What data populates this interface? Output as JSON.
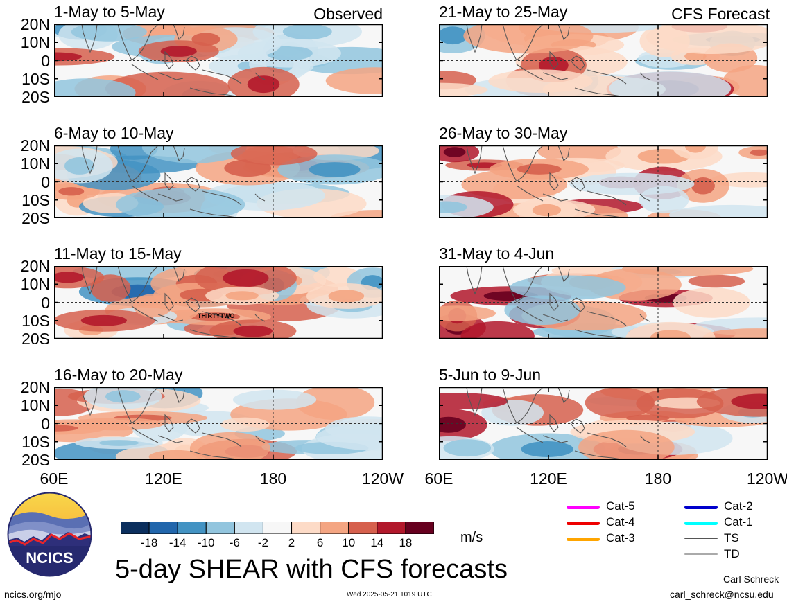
{
  "panels_left": [
    {
      "title": "1-May to 5-May",
      "tag": "Observed"
    },
    {
      "title": "6-May to 10-May",
      "tag": ""
    },
    {
      "title": "11-May to 15-May",
      "tag": "",
      "annotation": "THIRTYTWO"
    },
    {
      "title": "16-May to 20-May",
      "tag": ""
    }
  ],
  "panels_right": [
    {
      "title": "21-May to 25-May",
      "tag": "CFS Forecast"
    },
    {
      "title": "26-May to 30-May",
      "tag": ""
    },
    {
      "title": "31-May to 4-Jun",
      "tag": ""
    },
    {
      "title": "5-Jun to 9-Jun",
      "tag": ""
    }
  ],
  "lat_labels": [
    "20N",
    "10N",
    "0",
    "10S",
    "20S"
  ],
  "lon_labels": [
    "60E",
    "120E",
    "180",
    "120W"
  ],
  "colorbar": {
    "ticks": [
      "-18",
      "-14",
      "-10",
      "-6",
      "-2",
      "2",
      "6",
      "10",
      "14",
      "18"
    ],
    "colors": [
      "#0b2f5e",
      "#2166ac",
      "#4393c3",
      "#92c5de",
      "#d1e5f0",
      "#f7f7f7",
      "#fddbc7",
      "#f4a582",
      "#d6604d",
      "#b2182b",
      "#67001f"
    ],
    "units": "m/s"
  },
  "legend": [
    {
      "label": "Cat-5",
      "color": "#ff00ff"
    },
    {
      "label": "Cat-4",
      "color": "#ee0000"
    },
    {
      "label": "Cat-3",
      "color": "#ffa500"
    },
    {
      "label": "Cat-2",
      "color": "#0000cc"
    },
    {
      "label": "Cat-1",
      "color": "#00ffff"
    },
    {
      "label": "TS",
      "color": "#555555"
    },
    {
      "label": "TD",
      "color": "#aaaaaa"
    }
  ],
  "logo_text": "NCICS",
  "main_title": "5-day SHEAR with CFS forecasts",
  "website": "ncics.org/mjo",
  "timestamp": "Wed 2025-05-21 1019 UTC",
  "author": "Carl Schreck",
  "email": "carl_schreck@ncsu.edu"
}
